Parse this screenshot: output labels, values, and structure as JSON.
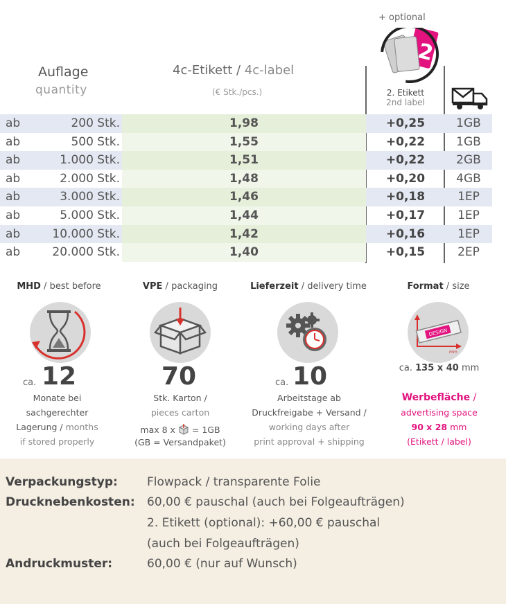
{
  "header": {
    "quantity_de": "Auflage",
    "quantity_en": "quantity",
    "label_de": "4c-Etikett",
    "label_sep": " / ",
    "label_en": "4c-label",
    "unit": "(€ Stk./pcs.)",
    "optional": "+ optional",
    "second_label_de": "2. Etikett",
    "second_label_en": "2nd label",
    "shipping_icon": "truck-mail-icon",
    "product_icon": "labels-magnifier-icon"
  },
  "rows": [
    {
      "prefix": "ab",
      "qty": "200 Stk.",
      "price": "1,98",
      "extra": "+0,25",
      "ship": "1GB"
    },
    {
      "prefix": "ab",
      "qty": "500 Stk.",
      "price": "1,55",
      "extra": "+0,22",
      "ship": "1GB"
    },
    {
      "prefix": "ab",
      "qty": "1.000 Stk.",
      "price": "1,51",
      "extra": "+0,22",
      "ship": "2GB"
    },
    {
      "prefix": "ab",
      "qty": "2.000 Stk.",
      "price": "1,48",
      "extra": "+0,20",
      "ship": "4GB"
    },
    {
      "prefix": "ab",
      "qty": "3.000 Stk.",
      "price": "1,46",
      "extra": "+0,18",
      "ship": "1EP"
    },
    {
      "prefix": "ab",
      "qty": "5.000 Stk.",
      "price": "1,44",
      "extra": "+0,17",
      "ship": "1EP"
    },
    {
      "prefix": "ab",
      "qty": "10.000 Stk.",
      "price": "1,42",
      "extra": "+0,16",
      "ship": "1EP"
    },
    {
      "prefix": "ab",
      "qty": "20.000 Stk.",
      "price": "1,40",
      "extra": "+0,15",
      "ship": "2EP"
    }
  ],
  "info": {
    "mhd": {
      "title_de": "MHD",
      "title_en": "best before",
      "icon": "hourglass-icon",
      "ca": "ca.",
      "value": "12",
      "line1": "Monate bei",
      "line2": "sachgerechter",
      "line3_de": "Lagerung",
      "line3_en": "months",
      "line4": "if stored properly"
    },
    "vpe": {
      "title_de": "VPE",
      "title_en": "packaging",
      "icon": "box-icon",
      "value": "70",
      "line1": "Stk. Karton /",
      "line2": "pieces carton",
      "line3_pre": "max 8 x",
      "line3_post": "= 1GB",
      "line4": "(GB = Versandpaket)"
    },
    "delivery": {
      "title_de": "Lieferzeit",
      "title_en": "delivery time",
      "icon": "gears-clock-icon",
      "ca": "ca.",
      "value": "10",
      "line1": "Arbeitstage ab",
      "line2": "Druckfreigabe + Versand /",
      "line3": "working days after",
      "line4": "print approval + shipping"
    },
    "format": {
      "title_de": "Format",
      "title_en": "size",
      "icon": "label-size-icon",
      "icon_text": "DESIGN",
      "icon_unit": "mm",
      "size_pre": "ca.",
      "size": "135 x 40",
      "size_unit": "mm",
      "space_de": "Werbefläche",
      "space_en": "advertising space",
      "space_size": "90 x 28",
      "space_unit": "mm",
      "space_note": "(Etikett / label)"
    }
  },
  "footer": {
    "packaging_label": "Verpackungstyp:",
    "packaging_value": "Flowpack / transparente Folie",
    "costs_label": "Drucknebenkosten:",
    "costs_value1": "60,00 € pauschal (auch bei Folgeaufträgen)",
    "costs_value2": "2. Etikett (optional): +60,00 € pauschal",
    "costs_value3": "(auch bei Folgeaufträgen)",
    "proof_label": "Andruckmuster:",
    "proof_value": "60,00 € (nur auf Wunsch)"
  },
  "colors": {
    "price_bg": "#e5efd9",
    "stripe_bg": "#e3e8f2",
    "accent_red": "#d8312d",
    "accent_pink": "#e2137e",
    "footer_bg": "#f5efe3"
  }
}
